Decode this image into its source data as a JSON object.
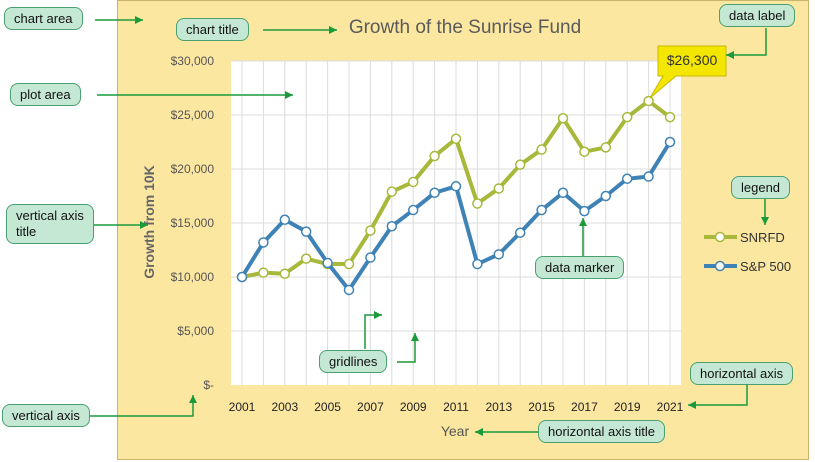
{
  "chart_data": {
    "type": "line",
    "title": "Growth of the Sunrise Fund",
    "xlabel": "Year",
    "ylabel": "Growth from 10K",
    "x": [
      2001,
      2002,
      2003,
      2004,
      2005,
      2006,
      2007,
      2008,
      2009,
      2010,
      2011,
      2012,
      2013,
      2014,
      2015,
      2016,
      2017,
      2018,
      2019,
      2020,
      2021
    ],
    "x_ticks": [
      "2001",
      "2003",
      "2005",
      "2007",
      "2009",
      "2011",
      "2013",
      "2015",
      "2017",
      "2019",
      "2021"
    ],
    "y_ticks": [
      "$-",
      "$5,000",
      "$10,000",
      "$15,000",
      "$20,000",
      "$25,000",
      "$30,000"
    ],
    "ylim": [
      0,
      30000
    ],
    "grid": true,
    "legend": "right",
    "series": [
      {
        "name": "SNRFD",
        "color": "#a8b83a",
        "values": [
          10000,
          10400,
          10300,
          11700,
          11200,
          11200,
          14300,
          17900,
          18800,
          21200,
          22800,
          16800,
          18200,
          20400,
          21800,
          24700,
          21600,
          22000,
          24800,
          26300,
          24800
        ]
      },
      {
        "name": "S&P 500",
        "color": "#3f82b5",
        "values": [
          10000,
          13200,
          15300,
          14200,
          11300,
          8800,
          11800,
          14700,
          16200,
          17800,
          18400,
          11200,
          12100,
          14100,
          16200,
          17800,
          16100,
          17500,
          19100,
          19300,
          22500
        ]
      }
    ],
    "data_label": "$26,300"
  },
  "callouts": {
    "chart_area": "chart area",
    "chart_title": "chart title",
    "plot_area": "plot area",
    "vertical_axis_title": "vertical axis title",
    "vertical_axis": "vertical axis",
    "gridlines": "gridlines",
    "data_marker": "data marker",
    "data_label": "data label",
    "legend": "legend",
    "horizontal_axis": "horizontal axis",
    "horizontal_axis_title": "horizontal axis title"
  },
  "colors": {
    "chart_area_bg": "#fce7a1",
    "callout_bg": "#c5e8d4",
    "arrow": "#1a9a3a",
    "data_label_bg": "#f3e600"
  }
}
